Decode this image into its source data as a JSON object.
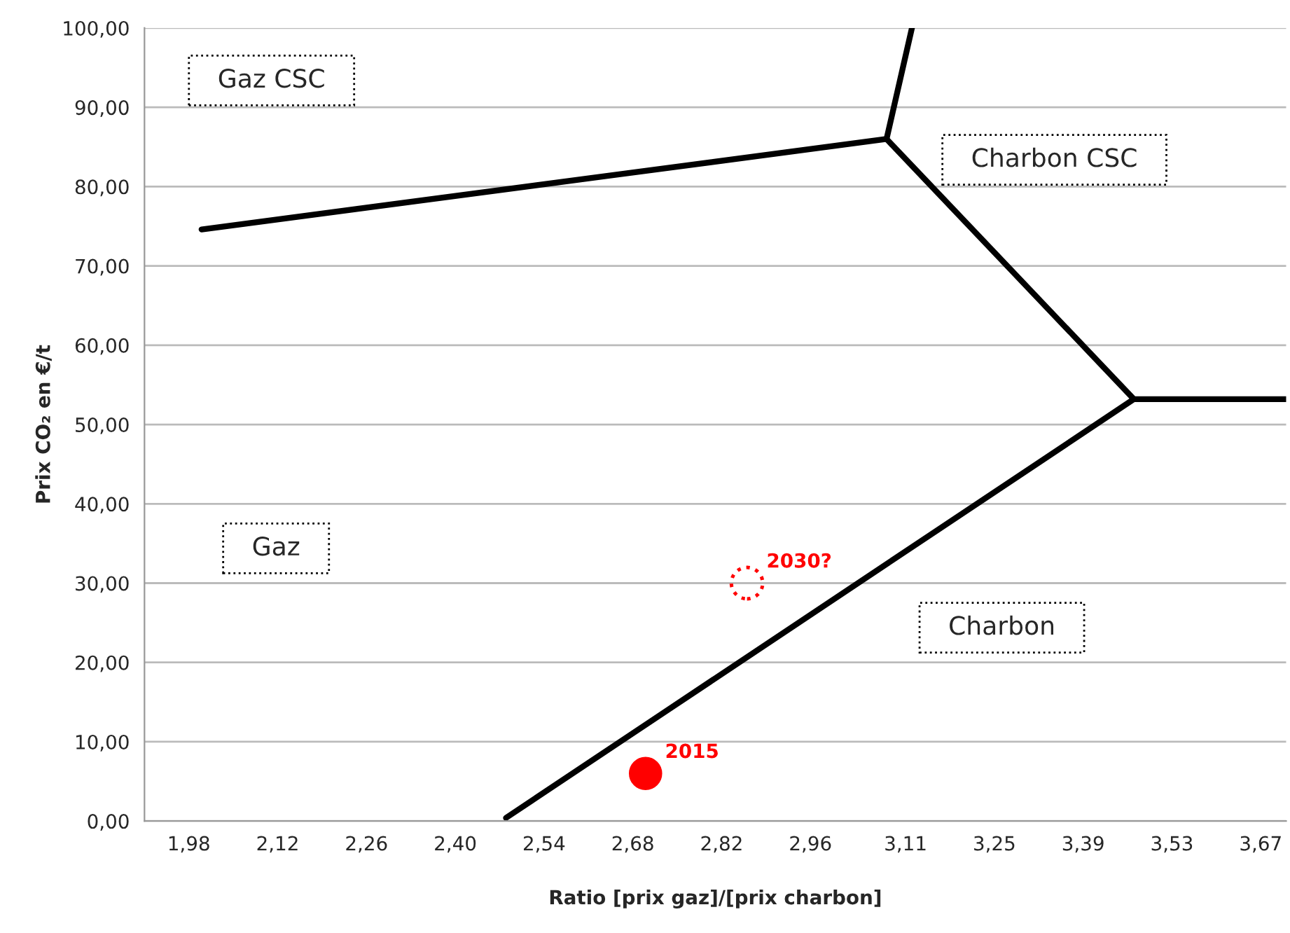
{
  "chart_data": {
    "type": "line",
    "xlabel": "Ratio [prix gaz]/[prix charbon]",
    "ylabel": "Prix CO₂ en €/t",
    "xlim": [
      1.91,
      3.71
    ],
    "xticks": [
      {
        "value": 1.98,
        "label": "1,98"
      },
      {
        "value": 2.12,
        "label": "2,12"
      },
      {
        "value": 2.26,
        "label": "2,26"
      },
      {
        "value": 2.4,
        "label": "2,40"
      },
      {
        "value": 2.54,
        "label": "2,54"
      },
      {
        "value": 2.68,
        "label": "2,68"
      },
      {
        "value": 2.82,
        "label": "2,82"
      },
      {
        "value": 2.96,
        "label": "2,96"
      },
      {
        "value": 3.11,
        "label": "3,11"
      },
      {
        "value": 3.25,
        "label": "3,25"
      },
      {
        "value": 3.39,
        "label": "3,39"
      },
      {
        "value": 3.53,
        "label": "3,53"
      },
      {
        "value": 3.67,
        "label": "3,67"
      }
    ],
    "ylim": [
      0,
      100
    ],
    "yticks": [
      {
        "value": 0,
        "label": "0,00"
      },
      {
        "value": 10,
        "label": "10,00"
      },
      {
        "value": 20,
        "label": "20,00"
      },
      {
        "value": 30,
        "label": "30,00"
      },
      {
        "value": 40,
        "label": "40,00"
      },
      {
        "value": 50,
        "label": "50,00"
      },
      {
        "value": 60,
        "label": "60,00"
      },
      {
        "value": 70,
        "label": "70,00"
      },
      {
        "value": 80,
        "label": "80,00"
      },
      {
        "value": 90,
        "label": "90,00"
      },
      {
        "value": 100,
        "label": "100,00"
      }
    ],
    "grid": "y",
    "series": [
      {
        "color": "#000000",
        "x": [
          3.12,
          3.08,
          3.47,
          3.71
        ],
        "values": [
          100,
          86.0,
          53.2,
          53.2
        ]
      },
      {
        "color": "#000000",
        "x": [
          2.0,
          3.08
        ],
        "values": [
          74.6,
          86.0
        ]
      },
      {
        "color": "#000000",
        "x": [
          2.48,
          3.47
        ],
        "values": [
          0.4,
          53.2
        ]
      },
      {
        "type": "scatter",
        "color": "#ff0000",
        "x": [
          2.7
        ],
        "values": [
          6.0
        ]
      },
      {
        "type": "scatter",
        "color": "#ff0000",
        "line_style": "dotted",
        "x": [
          2.86
        ],
        "values": [
          30.0
        ]
      }
    ],
    "annotations": [
      {
        "text": "2015",
        "x": 2.7,
        "y": 6.0
      },
      {
        "text": "2030?",
        "x": 2.86,
        "y": 30.0
      },
      "Gaz CSC",
      "Charbon CSC",
      "Gaz",
      "Charbon"
    ]
  }
}
